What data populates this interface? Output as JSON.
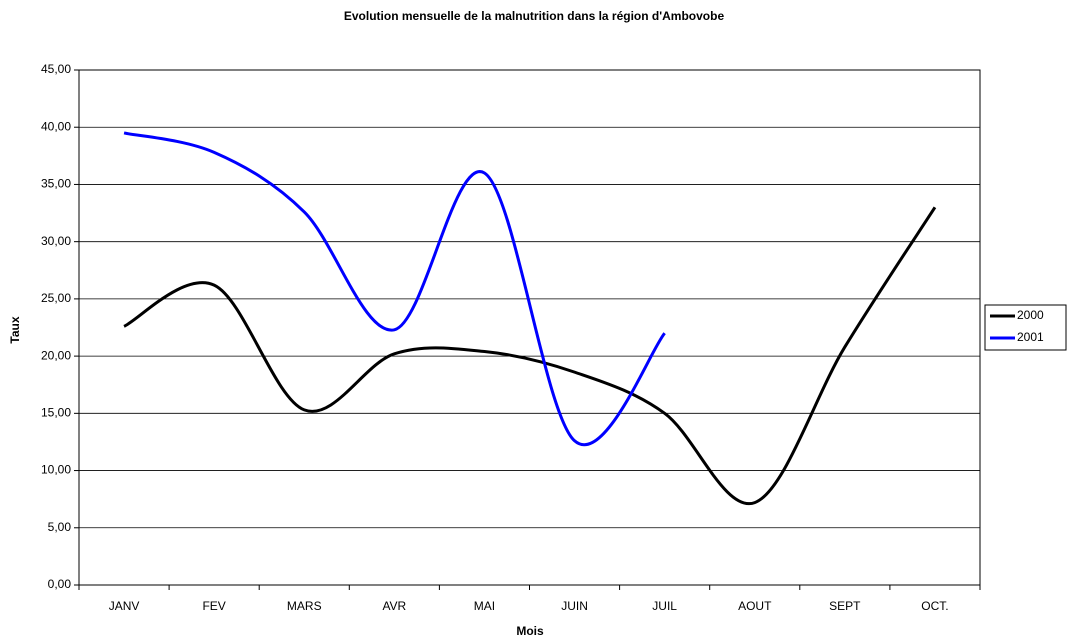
{
  "chart_data": {
    "type": "line",
    "title": "Evolution mensuelle de la malnutrition dans la région d'Ambovobe",
    "x_label": "Mois",
    "y_label": "Taux",
    "categories": [
      "JANV",
      "FEV",
      "MARS",
      "AVR",
      "MAI",
      "JUIN",
      "JUIL",
      "AOUT",
      "SEPT",
      "OCT."
    ],
    "series": [
      {
        "name": "2000",
        "color": "#000000",
        "values": [
          22.6,
          26.2,
          15.3,
          20.2,
          20.4,
          18.6,
          15.0,
          7.2,
          20.8,
          33.0
        ]
      },
      {
        "name": "2001",
        "color": "#0000ff",
        "values": [
          39.5,
          37.8,
          32.6,
          22.3,
          36.0,
          12.6,
          22.0,
          null,
          null,
          null
        ]
      }
    ],
    "ylim": [
      0,
      45
    ],
    "yticks": [
      {
        "value": 0,
        "label": "0,00"
      },
      {
        "value": 5,
        "label": "5,00"
      },
      {
        "value": 10,
        "label": "10,00"
      },
      {
        "value": 15,
        "label": "15,00"
      },
      {
        "value": 20,
        "label": "20,00"
      },
      {
        "value": 25,
        "label": "25,00"
      },
      {
        "value": 30,
        "label": "30,00"
      },
      {
        "value": 35,
        "label": "35,00"
      },
      {
        "value": 40,
        "label": "40,00"
      },
      {
        "value": 45,
        "label": "45,00"
      }
    ],
    "grid": true,
    "smooth": true,
    "legend": "right"
  }
}
